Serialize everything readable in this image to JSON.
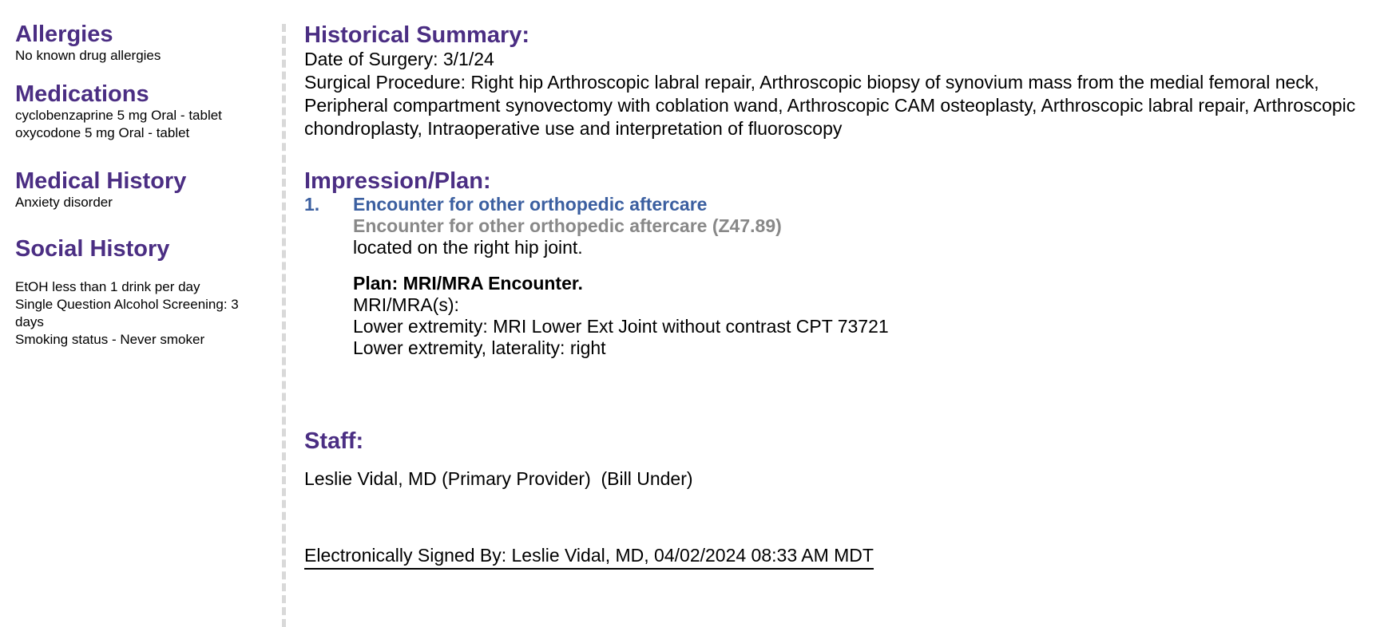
{
  "sidebar": {
    "allergies": {
      "title": "Allergies",
      "items": [
        "No known drug allergies"
      ]
    },
    "medications": {
      "title": "Medications",
      "items": [
        "cyclobenzaprine 5 mg Oral - tablet",
        "oxycodone 5 mg Oral - tablet"
      ]
    },
    "medical_history": {
      "title": "Medical History",
      "items": [
        "Anxiety disorder"
      ]
    },
    "social_history": {
      "title": "Social History",
      "items": [
        "EtOH less than 1 drink per day",
        "Single Question Alcohol Screening: 3 days",
        "Smoking status - Never smoker"
      ]
    }
  },
  "historical_summary": {
    "title": "Historical Summary:",
    "date_of_surgery": "Date of Surgery: 3/1/24",
    "surgical_procedure": "Surgical Procedure: Right hip Arthroscopic labral repair, Arthroscopic biopsy of synovium mass from the medial femoral neck, Peripheral compartment synovectomy with coblation wand, Arthroscopic CAM osteoplasty, Arthroscopic labral repair, Arthroscopic chondroplasty, Intraoperative use and interpretation of fluoroscopy"
  },
  "impression_plan": {
    "title": "Impression/Plan:",
    "items": [
      {
        "number": "1.",
        "diagnosis": "Encounter for other orthopedic aftercare",
        "diagnosis_with_code": "Encounter for other orthopedic aftercare (Z47.89)",
        "location": "located on the right hip joint.",
        "plan_title": "Plan: MRI/MRA Encounter.",
        "plan_lines": [
          "MRI/MRA(s):",
          "Lower extremity: MRI Lower Ext Joint without contrast CPT 73721",
          "Lower extremity, laterality: right"
        ]
      }
    ]
  },
  "staff": {
    "title": "Staff:",
    "provider": "Leslie Vidal, MD (Primary Provider)  (Bill Under)"
  },
  "signature": {
    "text": "Electronically Signed By: Leslie Vidal, MD, 04/02/2024 08:33 AM MDT"
  },
  "colors": {
    "heading": "#4b2e83",
    "diagnosis": "#3b5fa0",
    "code": "#888888",
    "divider": "#d9d9d9"
  }
}
